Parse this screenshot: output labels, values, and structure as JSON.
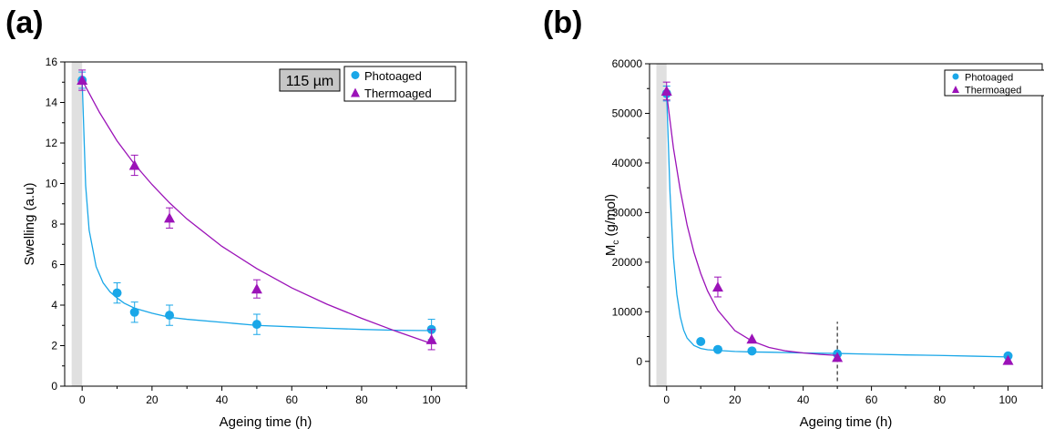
{
  "panels": {
    "a": {
      "label": "(a)"
    },
    "b": {
      "label": "(b)"
    }
  },
  "colors": {
    "photoaged": "#1aa7e8",
    "thermoaged": "#9b12b8",
    "shade": "#e0e0e0",
    "axis": "#000000"
  },
  "chart_data": [
    {
      "type": "scatter",
      "panel": "a",
      "title": "",
      "xlabel": "Ageing time (h)",
      "ylabel": "Swelling (a.u)",
      "xlim": [
        -5,
        110
      ],
      "ylim": [
        0,
        16
      ],
      "xticks": [
        0,
        20,
        40,
        60,
        80,
        100
      ],
      "yticks": [
        0,
        2,
        4,
        6,
        8,
        10,
        12,
        14,
        16
      ],
      "x_tick_labels": [
        "0",
        "20",
        "40",
        "60",
        "80",
        "100"
      ],
      "y_tick_labels": [
        "0",
        "2",
        "4",
        "6",
        "8",
        "10",
        "12",
        "14",
        "16"
      ],
      "shaded_band": [
        -3,
        0
      ],
      "annotation": "115 µm",
      "legend_position": "top-right",
      "grid": false,
      "series": [
        {
          "name": "Photoaged",
          "marker": "circle",
          "color": "#1aa7e8",
          "x": [
            0,
            10,
            15,
            25,
            50,
            100
          ],
          "y": [
            15.1,
            4.6,
            3.65,
            3.5,
            3.05,
            2.8
          ],
          "err": [
            0.4,
            0.5,
            0.5,
            0.5,
            0.5,
            0.5
          ],
          "fit": {
            "x": [
              0,
              1,
              2,
              4,
              6,
              8,
              10,
              12,
              15,
              20,
              25,
              30,
              40,
              50,
              60,
              70,
              80,
              90,
              100
            ],
            "y": [
              15.1,
              9.9,
              7.7,
              5.9,
              5.1,
              4.65,
              4.35,
              4.1,
              3.85,
              3.6,
              3.4,
              3.3,
              3.15,
              3.0,
              2.93,
              2.86,
              2.8,
              2.76,
              2.74
            ]
          }
        },
        {
          "name": "Thermoaged",
          "marker": "triangle",
          "color": "#9b12b8",
          "x": [
            0,
            15,
            25,
            50,
            100
          ],
          "y": [
            15.1,
            10.9,
            8.3,
            4.8,
            2.3
          ],
          "err": [
            0.5,
            0.5,
            0.5,
            0.45,
            0.5
          ],
          "fit": {
            "x": [
              0,
              5,
              10,
              15,
              20,
              25,
              30,
              40,
              50,
              60,
              70,
              80,
              90,
              100
            ],
            "y": [
              15.1,
              13.5,
              12.1,
              10.95,
              9.95,
              9.05,
              8.25,
              6.9,
              5.8,
              4.85,
              4.05,
              3.35,
              2.7,
              2.1
            ]
          }
        }
      ]
    },
    {
      "type": "scatter",
      "panel": "b",
      "title": "",
      "xlabel": "Ageing time (h)",
      "ylabel": "Mc (g/mol)",
      "ylabel_main": "M",
      "ylabel_sub": "c",
      "ylabel_unit": " (g/mol)",
      "xlim": [
        -5,
        110
      ],
      "ylim": [
        -5000,
        60000
      ],
      "xticks": [
        0,
        20,
        40,
        60,
        80,
        100
      ],
      "yticks": [
        0,
        10000,
        20000,
        30000,
        40000,
        50000,
        60000
      ],
      "x_tick_labels": [
        "0",
        "20",
        "40",
        "60",
        "80",
        "100"
      ],
      "y_tick_labels": [
        "0",
        "10000",
        "20000",
        "30000",
        "40000",
        "50000",
        "60000"
      ],
      "shaded_band": [
        -3,
        0
      ],
      "dashed_vline": {
        "x": 50,
        "y_from": -4000,
        "y_to": 8000
      },
      "legend_position": "top-right",
      "grid": false,
      "series": [
        {
          "name": "Photoaged",
          "marker": "circle",
          "color": "#1aa7e8",
          "x": [
            0,
            10,
            15,
            25,
            50,
            100
          ],
          "y": [
            54000,
            4000,
            2400,
            2100,
            1500,
            1100
          ],
          "err": [
            1500,
            0,
            0,
            0,
            0,
            0
          ],
          "fit": {
            "x": [
              0,
              1,
              2,
              3,
              4,
              5,
              6,
              8,
              10,
              12,
              15,
              20,
              25,
              30,
              40,
              50,
              60,
              70,
              80,
              90,
              100
            ],
            "y": [
              54000,
              34000,
              21000,
              13500,
              9000,
              6300,
              4700,
              3200,
              2600,
              2350,
              2200,
              2000,
              1900,
              1850,
              1700,
              1600,
              1450,
              1300,
              1200,
              1050,
              900
            ]
          }
        },
        {
          "name": "Thermoaged",
          "marker": "triangle",
          "color": "#9b12b8",
          "x": [
            0,
            15,
            25,
            50,
            100
          ],
          "y": [
            54500,
            15000,
            4500,
            800,
            200
          ],
          "err": [
            1800,
            2000,
            0,
            0,
            0
          ],
          "fit": {
            "x": [
              0,
              2,
              4,
              6,
              8,
              10,
              12,
              15,
              20,
              25,
              30,
              35,
              40,
              45,
              50
            ],
            "y": [
              54000,
              43000,
              34500,
              27500,
              22000,
              17700,
              14200,
              10300,
              6200,
              4100,
              2800,
              2100,
              1700,
              1400,
              1200
            ]
          }
        }
      ]
    }
  ]
}
